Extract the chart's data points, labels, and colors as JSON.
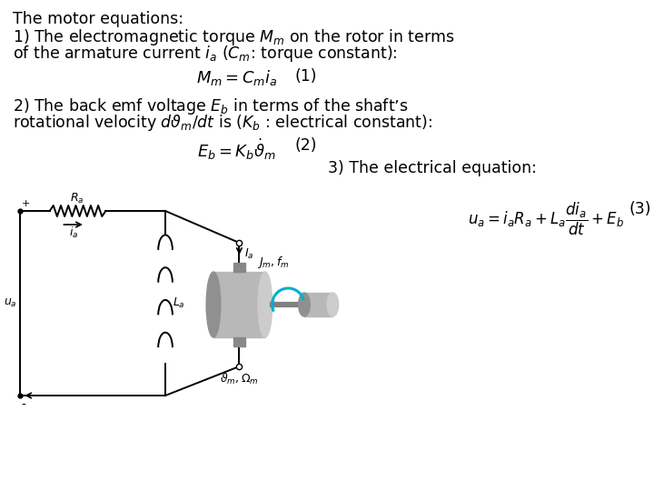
{
  "bg_color": "#ffffff",
  "text_color": "#000000",
  "cyan_color": "#00b0d0",
  "font_size_text": 12.5,
  "font_size_eq": 13,
  "line1": "The motor equations:",
  "line2": "1) The electromagnetic torque $M_m$ on the rotor in terms",
  "line3": "of the armature current $i_a$ ($C_m$: torque constant):",
  "eq1_text": "$M_m = C_m i_a$",
  "eq1_num": "(1)",
  "line4": "2) The back emf voltage $E_b$ in terms of the shaft’s",
  "line5": "rotational velocity $d\\vartheta_m/dt$ is ($K_b$ : electrical constant):",
  "eq2_text": "$E_b = K_b \\dot{\\vartheta}_m$",
  "eq2_num": "(2)",
  "line6": "3) The electrical equation:",
  "eq3_text": "$u_a = i_aR_a + L_a\\dfrac{di_a}{dt} + E_b$",
  "eq3_num": "(3)"
}
